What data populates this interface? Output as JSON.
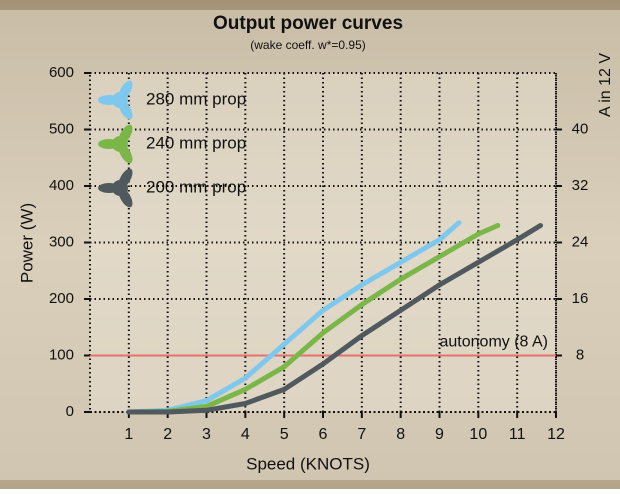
{
  "chart_data": {
    "type": "line",
    "title": "Output power curves",
    "subtitle": "(wake coeff. w*=0.95)",
    "x_label": "Speed (KNOTS)",
    "y_label": "Power (W)",
    "y2_label": "A in 12 V",
    "xlim": [
      0,
      12
    ],
    "xticks": [
      1,
      2,
      3,
      4,
      5,
      6,
      7,
      8,
      9,
      10,
      11,
      12
    ],
    "ylim": [
      0,
      600
    ],
    "yticks": [
      0,
      100,
      200,
      300,
      400,
      500,
      600
    ],
    "y2lim": [
      0,
      48
    ],
    "y2ticks": [
      8,
      16,
      24,
      32,
      40
    ],
    "grid": true,
    "series": [
      {
        "name": "280 mm prop",
        "color": "#7ec8ee",
        "x": [
          1,
          2,
          3,
          4,
          5,
          6,
          7,
          8,
          9,
          9.5
        ],
        "values": [
          0,
          3,
          20,
          60,
          120,
          180,
          225,
          265,
          305,
          335
        ]
      },
      {
        "name": "240 mm prop",
        "color": "#7ab648",
        "x": [
          1,
          2,
          3,
          4,
          5,
          6,
          7,
          8,
          9,
          10,
          10.5
        ],
        "values": [
          0,
          1,
          10,
          40,
          80,
          140,
          190,
          235,
          275,
          315,
          330
        ]
      },
      {
        "name": "200 mm prop",
        "color": "#505a5e",
        "x": [
          1,
          2,
          3,
          4,
          5,
          6,
          7,
          8,
          9,
          10,
          11,
          11.6
        ],
        "values": [
          0,
          0,
          3,
          15,
          40,
          85,
          135,
          180,
          225,
          265,
          305,
          330
        ]
      }
    ],
    "reference_line": {
      "value": 100,
      "label": "autonomy (8 A)",
      "color": "#e8706a"
    }
  }
}
